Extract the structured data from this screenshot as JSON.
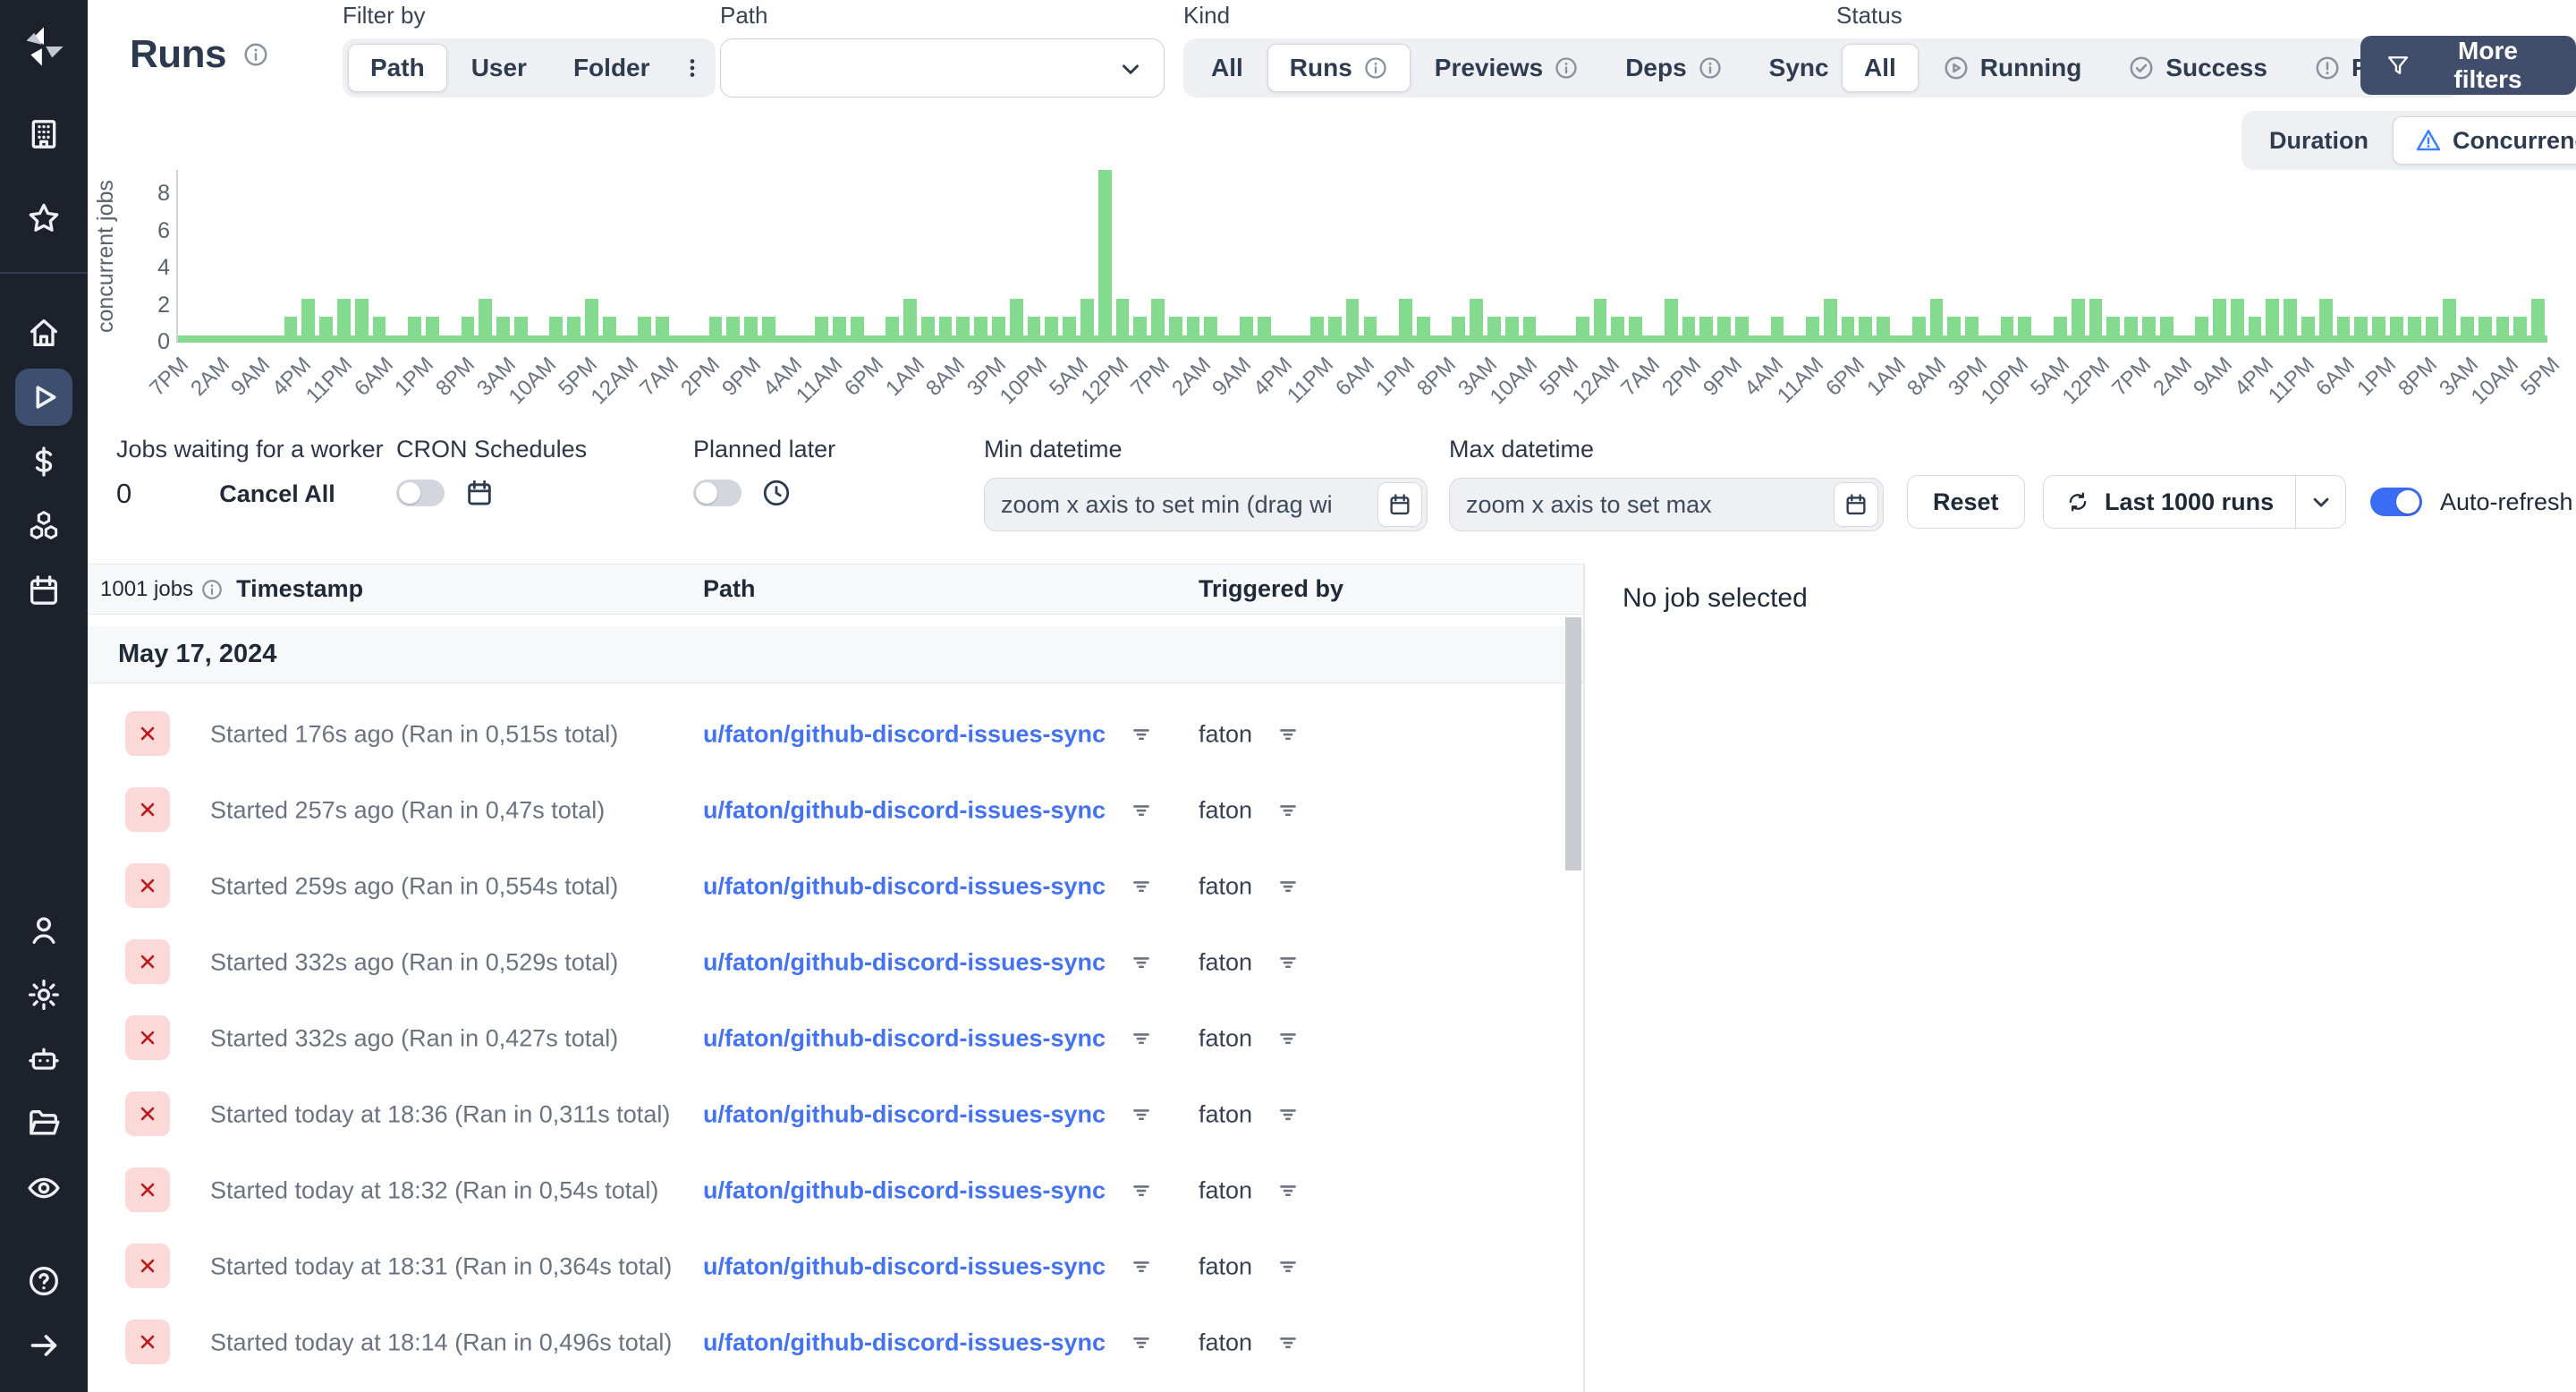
{
  "header": {
    "title": "Runs",
    "filter_by": {
      "label": "Filter by",
      "options": [
        "Path",
        "User",
        "Folder"
      ],
      "active": "Path"
    },
    "path_filter": {
      "label": "Path",
      "value": ""
    },
    "kind": {
      "label": "Kind",
      "options": [
        "All",
        "Runs",
        "Previews",
        "Deps",
        "Sync"
      ],
      "active": "Runs"
    },
    "status": {
      "label": "Status",
      "options": [
        "All",
        "Running",
        "Success",
        "Failure"
      ],
      "active": "All"
    },
    "more_filters_label": "More filters"
  },
  "sidebar": {
    "selected": "runs",
    "icons": [
      "windmill-logo",
      "building",
      "star",
      "home",
      "play-runs",
      "dollar",
      "resources-boxes",
      "calendar",
      "user",
      "settings-gear",
      "worker-robot",
      "folder",
      "eye-audit",
      "help",
      "expand-arrow"
    ]
  },
  "chart_toggle": {
    "options": [
      "Duration",
      "Concurrency"
    ],
    "active": "Concurrency"
  },
  "chart_data": {
    "type": "bar",
    "title": "",
    "xlabel": "",
    "ylabel": "concurrent jobs",
    "yticks": [
      0,
      2,
      4,
      6,
      8
    ],
    "ylim": [
      0,
      9
    ],
    "grid": false,
    "legend": "none",
    "bar_color": "#84da8e",
    "x_labels": [
      "7PM",
      "2AM",
      "9AM",
      "4PM",
      "11PM",
      "6AM",
      "1PM",
      "8PM",
      "3AM",
      "10AM",
      "5PM",
      "12AM",
      "7AM",
      "2PM",
      "9PM",
      "4AM",
      "11AM",
      "6PM",
      "1AM",
      "8AM",
      "3PM",
      "10PM",
      "5AM",
      "12PM",
      "7PM",
      "2AM",
      "9AM",
      "4PM",
      "11PM",
      "6AM",
      "1PM",
      "8PM",
      "3AM",
      "10AM",
      "5PM",
      "12AM",
      "7AM",
      "2PM",
      "9PM",
      "4AM",
      "11AM",
      "6PM",
      "1AM",
      "8AM",
      "3PM",
      "10PM",
      "5AM",
      "12PM",
      "7PM",
      "2AM",
      "9AM",
      "4PM",
      "11PM",
      "6AM",
      "1PM",
      "8PM",
      "3AM",
      "10AM",
      "5PM"
    ],
    "values": [
      0,
      0,
      0,
      0,
      0,
      0,
      1,
      2,
      1,
      2,
      2,
      1,
      0,
      1,
      1,
      0,
      1,
      2,
      1,
      1,
      0,
      1,
      1,
      2,
      1,
      0,
      1,
      1,
      0,
      0,
      1,
      1,
      1,
      1,
      0,
      0,
      1,
      1,
      1,
      0,
      1,
      2,
      1,
      1,
      1,
      1,
      1,
      2,
      1,
      1,
      1,
      2,
      9,
      2,
      1,
      2,
      1,
      1,
      1,
      0,
      1,
      1,
      0,
      0,
      1,
      1,
      2,
      1,
      0,
      2,
      1,
      0,
      1,
      2,
      1,
      1,
      1,
      0,
      0,
      1,
      2,
      1,
      1,
      0,
      2,
      1,
      1,
      1,
      1,
      0,
      1,
      0,
      1,
      2,
      1,
      1,
      1,
      0,
      1,
      2,
      1,
      1,
      0,
      1,
      1,
      0,
      1,
      2,
      2,
      1,
      1,
      1,
      1,
      0,
      1,
      2,
      2,
      1,
      2,
      2,
      1,
      2,
      1,
      1,
      1,
      1,
      1,
      1,
      2,
      1,
      1,
      1,
      1,
      2
    ]
  },
  "controls": {
    "jobs_waiting": {
      "label": "Jobs waiting for a worker",
      "count": "0",
      "cancel_all_label": "Cancel All"
    },
    "cron": {
      "label": "CRON Schedules",
      "enabled": false
    },
    "planned": {
      "label": "Planned later",
      "enabled": false
    },
    "min_datetime": {
      "label": "Min datetime",
      "placeholder": "zoom x axis to set min (drag wi"
    },
    "max_datetime": {
      "label": "Max datetime",
      "placeholder": "zoom x axis to set max"
    },
    "reset_label": "Reset",
    "runs_window_label": "Last 1000 runs",
    "auto_refresh": {
      "label": "Auto-refresh",
      "enabled": true
    }
  },
  "table": {
    "jobs_count": "1001 jobs",
    "columns": {
      "timestamp": "Timestamp",
      "path": "Path",
      "triggered_by": "Triggered by"
    },
    "group_date": "May 17, 2024",
    "rows": [
      {
        "status": "failure",
        "timestamp": "Started 176s ago (Ran in 0,515s total)",
        "path": "u/faton/github-discord-issues-sync",
        "triggered_by": "faton"
      },
      {
        "status": "failure",
        "timestamp": "Started 257s ago (Ran in 0,47s total)",
        "path": "u/faton/github-discord-issues-sync",
        "triggered_by": "faton"
      },
      {
        "status": "failure",
        "timestamp": "Started 259s ago (Ran in 0,554s total)",
        "path": "u/faton/github-discord-issues-sync",
        "triggered_by": "faton"
      },
      {
        "status": "failure",
        "timestamp": "Started 332s ago (Ran in 0,529s total)",
        "path": "u/faton/github-discord-issues-sync",
        "triggered_by": "faton"
      },
      {
        "status": "failure",
        "timestamp": "Started 332s ago (Ran in 0,427s total)",
        "path": "u/faton/github-discord-issues-sync",
        "triggered_by": "faton"
      },
      {
        "status": "failure",
        "timestamp": "Started today at 18:36 (Ran in 0,311s total)",
        "path": "u/faton/github-discord-issues-sync",
        "triggered_by": "faton"
      },
      {
        "status": "failure",
        "timestamp": "Started today at 18:32 (Ran in 0,54s total)",
        "path": "u/faton/github-discord-issues-sync",
        "triggered_by": "faton"
      },
      {
        "status": "failure",
        "timestamp": "Started today at 18:31 (Ran in 0,364s total)",
        "path": "u/faton/github-discord-issues-sync",
        "triggered_by": "faton"
      },
      {
        "status": "failure",
        "timestamp": "Started today at 18:14 (Ran in 0,496s total)",
        "path": "u/faton/github-discord-issues-sync",
        "triggered_by": "faton"
      }
    ]
  },
  "detail_panel": {
    "empty_text": "No job selected"
  },
  "colors": {
    "sidebar_bg": "#1c212c",
    "sidebar_selected": "#3e4e6e",
    "accent_blue": "#3b6cf5",
    "link_blue": "#4573f0",
    "bar_green": "#84da8e",
    "failure_red": "#b91c1c",
    "failure_bg": "#fbd9d9",
    "dark_button": "#414e6b",
    "warning_triangle": "#3b82f6"
  }
}
